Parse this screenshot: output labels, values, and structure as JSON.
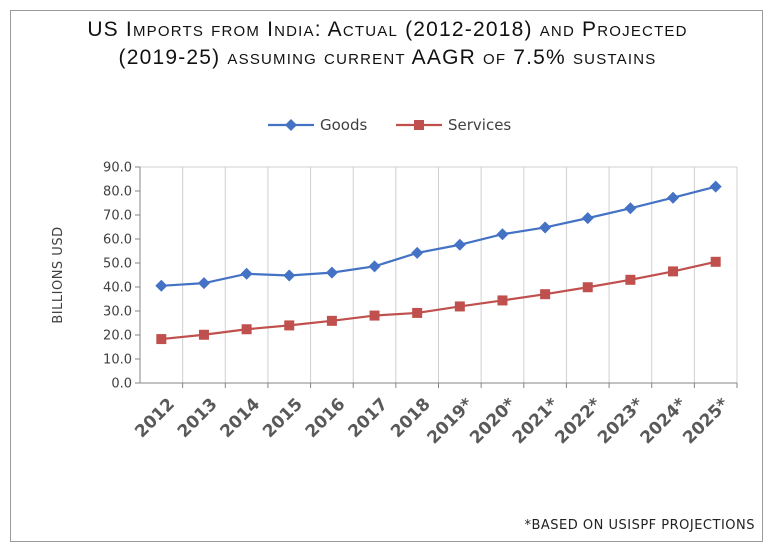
{
  "title_lines": [
    "US Imports from India: Actual (2012-2018) and Projected",
    "(2019-25) assuming current AAGR of 7.5% sustains"
  ],
  "footnote": "*BASED ON USISPF PROJECTIONS",
  "colors": {
    "goods": "#4472C4",
    "services": "#C0504D",
    "grid": "#d0d0d0",
    "axis": "#868686"
  },
  "chart_data": {
    "type": "line",
    "title": "US Imports from India: Actual (2012-2018) and Projected (2019-25) assuming current AAGR of 7.5% sustains",
    "xlabel": "",
    "ylabel": "BILLIONS USD",
    "ylim": [
      0,
      90
    ],
    "yticks": [
      "0.0",
      "10.0",
      "20.0",
      "30.0",
      "40.0",
      "50.0",
      "60.0",
      "70.0",
      "80.0",
      "90.0"
    ],
    "categories": [
      "2012",
      "2013",
      "2014",
      "2015",
      "2016",
      "2017",
      "2018",
      "2019*",
      "2020*",
      "2021*",
      "2022*",
      "2023*",
      "2024*",
      "2025*"
    ],
    "legend_position": "top",
    "grid": "vertical",
    "series": [
      {
        "name": "Goods",
        "marker": "diamond",
        "values": [
          40.5,
          41.6,
          45.5,
          44.8,
          46.0,
          48.6,
          54.2,
          57.6,
          62.0,
          64.8,
          68.7,
          72.8,
          77.2,
          81.8
        ]
      },
      {
        "name": "Services",
        "marker": "square",
        "values": [
          18.3,
          20.1,
          22.4,
          24.0,
          25.9,
          28.1,
          29.2,
          31.9,
          34.4,
          37.0,
          39.9,
          43.0,
          46.5,
          50.5
        ]
      }
    ]
  }
}
